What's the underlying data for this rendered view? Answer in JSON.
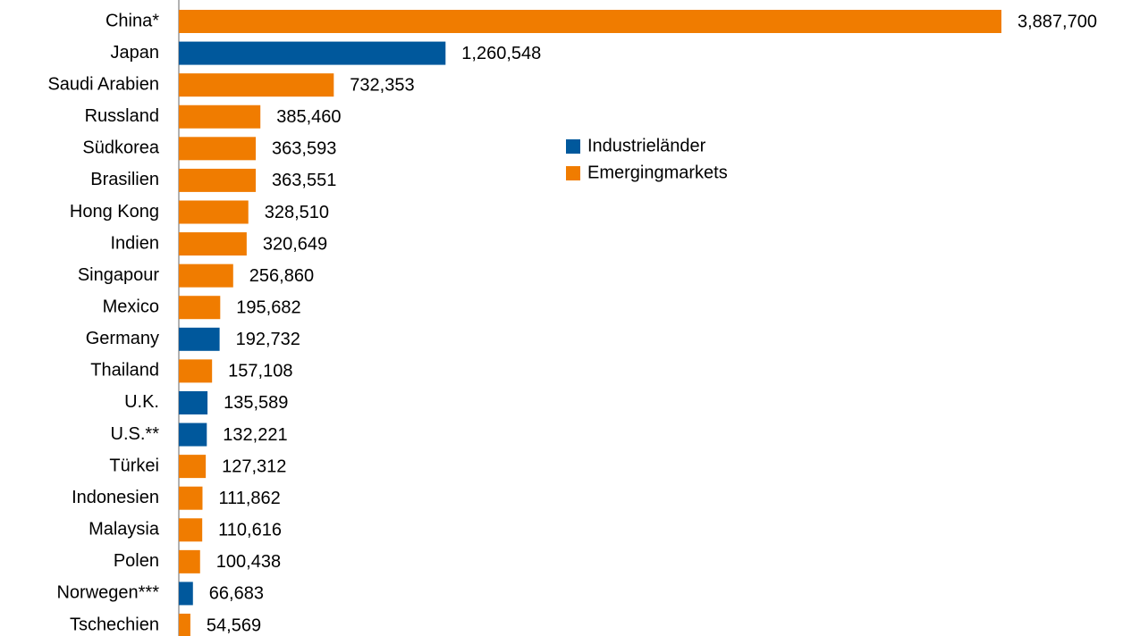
{
  "chart_data": {
    "type": "bar",
    "orientation": "horizontal",
    "categories": [
      "China*",
      "Japan",
      "Saudi Arabien",
      "Russland",
      "Südkorea",
      "Brasilien",
      "Hong Kong",
      "Indien",
      "Singapour",
      "Mexico",
      "Germany",
      "Thailand",
      "U.K.",
      "U.S.**",
      "Türkei",
      "Indonesien",
      "Malaysia",
      "Polen",
      "Norwegen***",
      "Tschechien"
    ],
    "series": [
      {
        "name": "Industrieländer",
        "color": "#00589c",
        "values": [
          null,
          1260548,
          null,
          null,
          null,
          null,
          null,
          null,
          null,
          null,
          192732,
          null,
          135589,
          132221,
          null,
          null,
          null,
          null,
          66683,
          null
        ],
        "value_labels": [
          null,
          "1,260,548",
          null,
          null,
          null,
          null,
          null,
          null,
          null,
          null,
          "192,732",
          null,
          "135,589",
          "132,221",
          null,
          null,
          null,
          null,
          "66,683",
          null
        ]
      },
      {
        "name": "Emergingmarkets",
        "color": "#f07c00",
        "values": [
          3887700,
          null,
          732353,
          385460,
          363593,
          363551,
          328510,
          320649,
          256860,
          195682,
          null,
          157108,
          null,
          null,
          127312,
          111862,
          110616,
          100438,
          null,
          54569
        ],
        "value_labels": [
          "3,887,700",
          null,
          "732,353",
          "385,460",
          "363,593",
          "363,551",
          "328,510",
          "320,649",
          "256,860",
          "195,682",
          null,
          "157,108",
          null,
          null,
          "127,312",
          "111,862",
          "110,616",
          "100,438",
          null,
          "54,569"
        ]
      }
    ],
    "legend": "upper-center"
  }
}
